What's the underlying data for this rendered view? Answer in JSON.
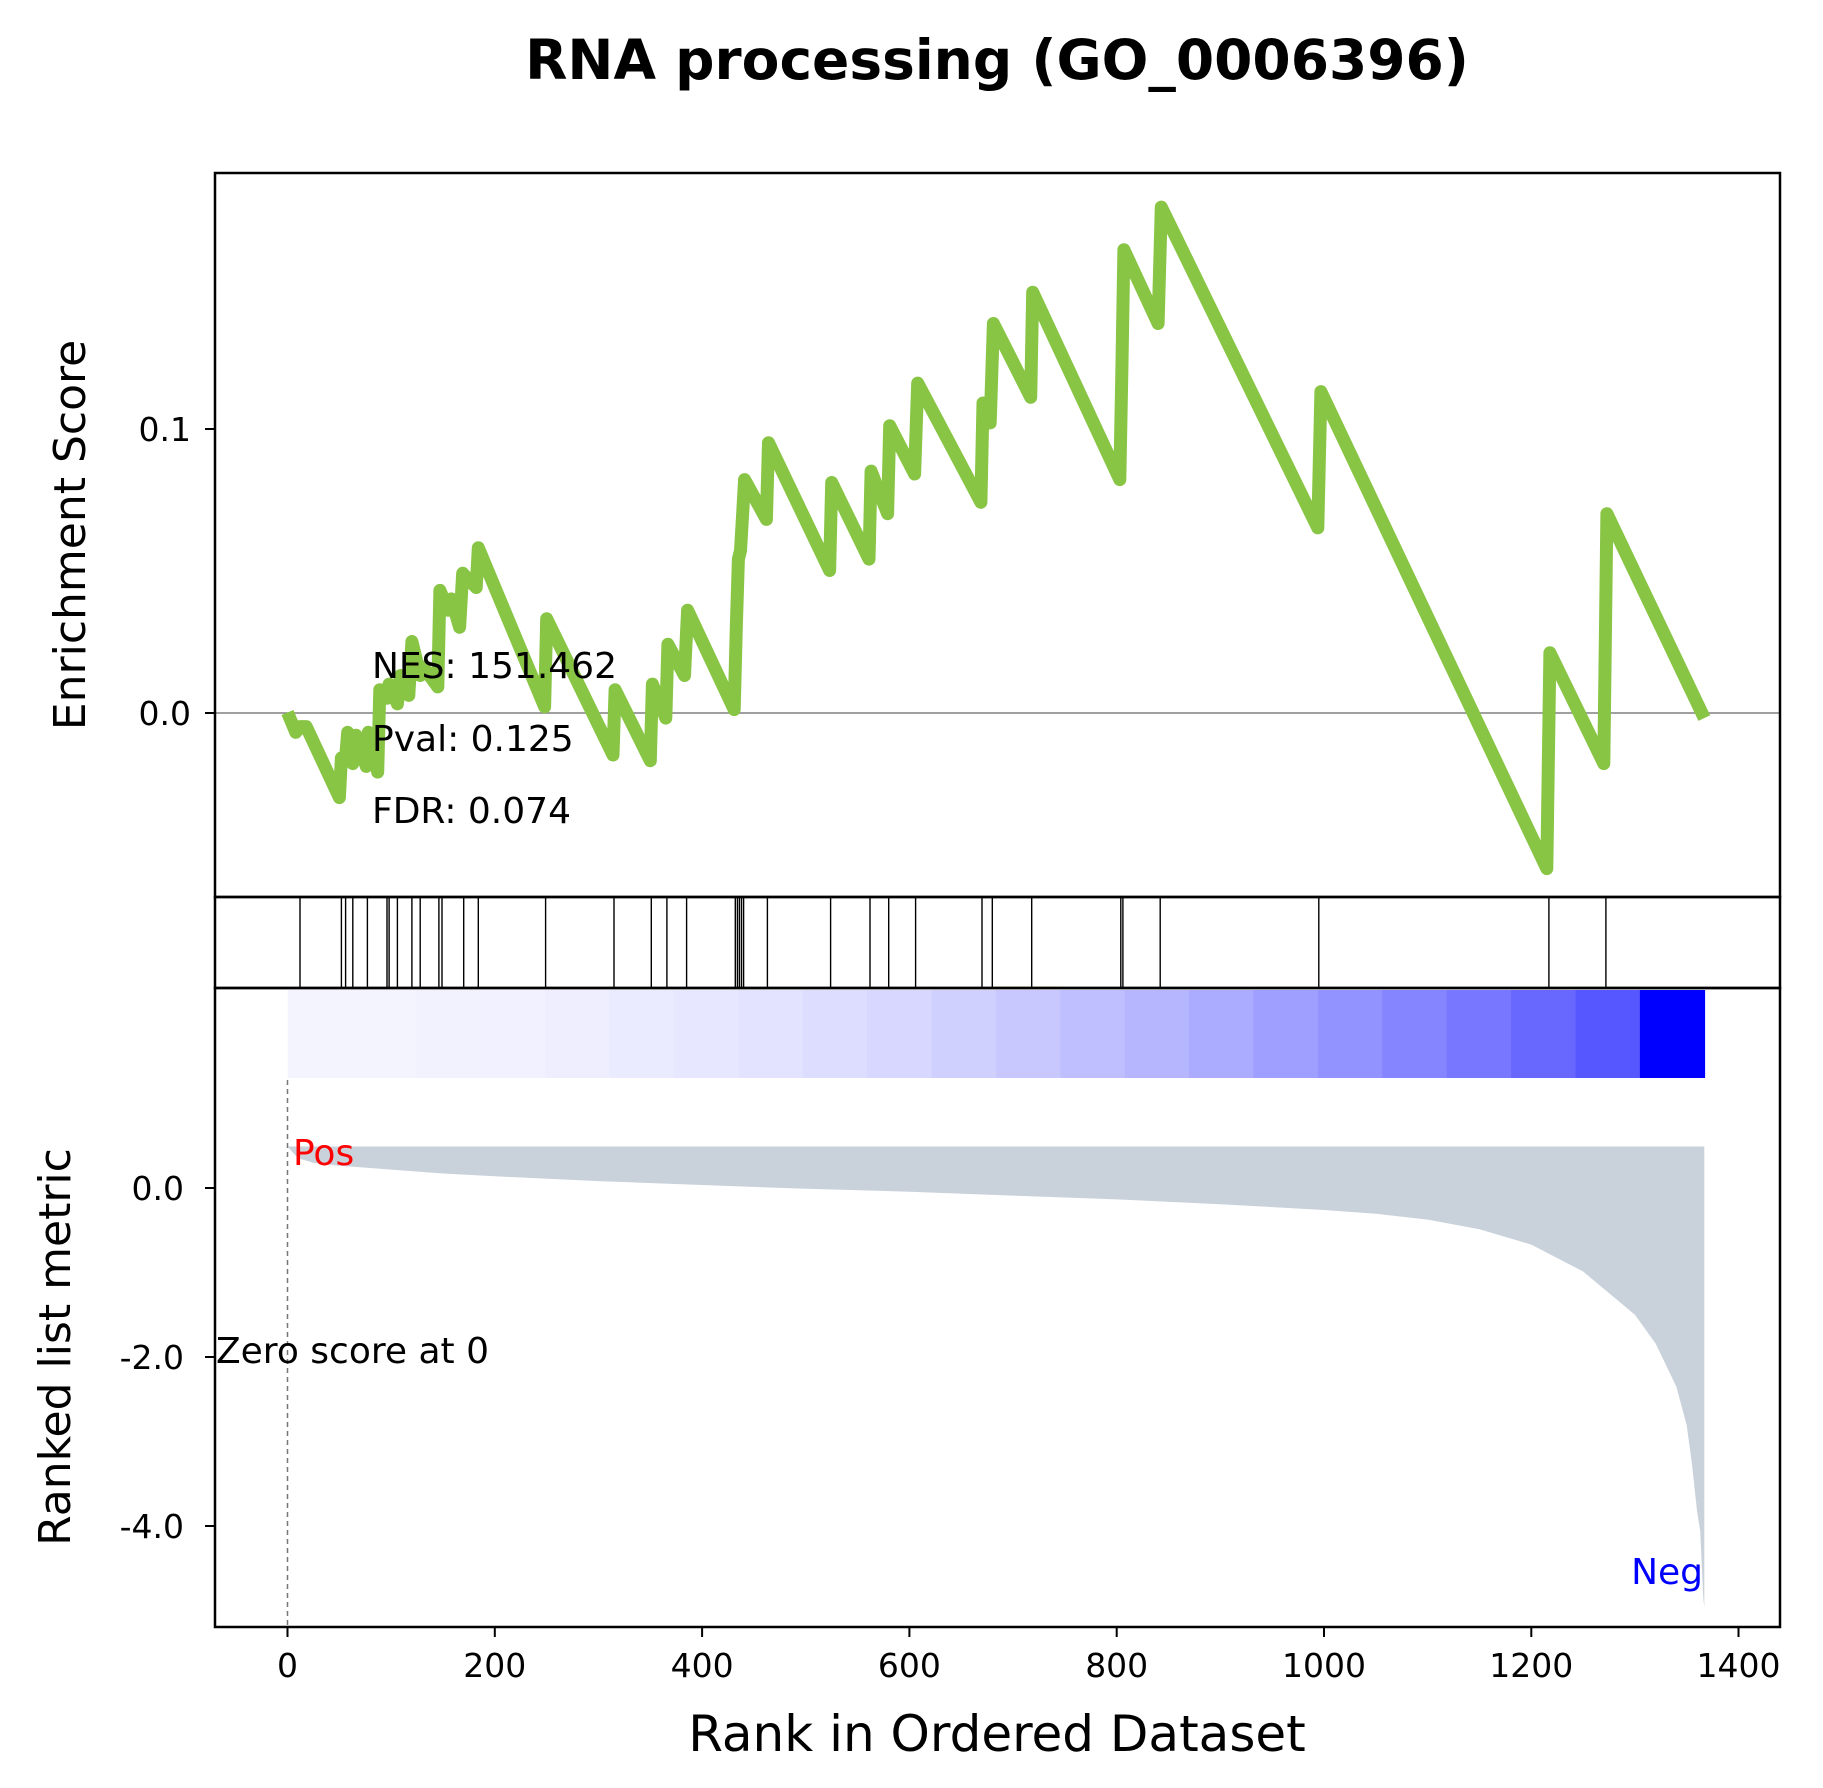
{
  "chart_data": {
    "type": "line",
    "title": "RNA processing (GO_0006396)",
    "xlabel": "Rank in Ordered Dataset",
    "xlim": [
      -70,
      1440
    ],
    "xticks": [
      0,
      200,
      400,
      600,
      800,
      1000,
      1200,
      1400
    ],
    "colors": {
      "es_line": "#88c544",
      "zero_line": "#808080",
      "hit": "#000000",
      "metric_fill": "#c9d2db",
      "pos_label": "#ff0000",
      "neg_label": "#0000ff",
      "heatmap_low": "#f4f4ff",
      "heatmap_high": "#0000ff"
    },
    "es_panel": {
      "ylabel": "Enrichment Score",
      "ylim": [
        -0.065,
        0.19
      ],
      "yticks": [
        0.0,
        0.1
      ],
      "ytick_labels": [
        "0.0",
        "0.1"
      ],
      "stats": [
        "NES: 151.462",
        "Pval: 0.125",
        "FDR: 0.074"
      ],
      "series": [
        {
          "x": [
            0,
            8,
            12,
            18,
            50,
            52,
            56,
            58,
            63,
            66,
            76,
            78,
            87,
            89,
            96,
            98,
            106,
            109,
            117,
            120,
            128,
            131,
            145,
            147,
            155,
            158,
            166,
            169,
            182,
            184,
            248,
            250,
            314,
            316,
            350,
            352,
            365,
            367,
            383,
            386,
            431,
            433,
            435,
            437,
            439,
            441,
            462,
            464,
            523,
            525,
            561,
            563,
            579,
            581,
            605,
            608,
            669,
            671,
            678,
            681,
            717,
            719,
            803,
            805,
            807,
            840,
            843,
            994,
            997,
            1215,
            1218,
            1270,
            1273,
            1367
          ],
          "y": [
            0.0,
            -0.007,
            -0.005,
            -0.005,
            -0.03,
            -0.016,
            -0.016,
            -0.007,
            -0.018,
            -0.008,
            -0.019,
            -0.007,
            -0.021,
            0.008,
            0.005,
            0.01,
            0.003,
            0.013,
            0.006,
            0.025,
            0.013,
            0.016,
            0.009,
            0.043,
            0.036,
            0.04,
            0.03,
            0.049,
            0.044,
            0.058,
            0.002,
            0.033,
            -0.015,
            0.008,
            -0.017,
            0.01,
            -0.002,
            0.024,
            0.013,
            0.036,
            0.001,
            0.03,
            0.054,
            0.057,
            0.069,
            0.082,
            0.068,
            0.095,
            0.05,
            0.081,
            0.054,
            0.085,
            0.07,
            0.101,
            0.084,
            0.116,
            0.074,
            0.109,
            0.102,
            0.137,
            0.111,
            0.148,
            0.082,
            0.121,
            0.163,
            0.137,
            0.178,
            0.065,
            0.113,
            -0.055,
            0.021,
            -0.018,
            0.07,
            -0.002
          ]
        }
      ]
    },
    "hits_panel": {
      "hits": [
        12,
        52,
        56,
        63,
        77,
        96,
        98,
        106,
        120,
        128,
        146,
        149,
        170,
        184,
        249,
        315,
        351,
        366,
        385,
        432,
        434,
        436,
        438,
        440,
        463,
        524,
        562,
        580,
        606,
        670,
        680,
        718,
        804,
        806,
        842,
        995,
        1217,
        1272
      ]
    },
    "metric_panel": {
      "ylabel": "Ranked list metric",
      "ylim": [
        -5.0,
        1.65
      ],
      "yticks": [
        0.0,
        -2.0,
        -4.0
      ],
      "ytick_labels": [
        "0.0",
        "-2.0",
        "-4.0"
      ],
      "pos_label": "Pos",
      "neg_label": "Neg",
      "zero_score_label": "Zero score at 0",
      "zero_score_x": 0,
      "series": [
        {
          "x": [
            0,
            10,
            25,
            50,
            100,
            150,
            200,
            300,
            400,
            500,
            600,
            700,
            800,
            900,
            1000,
            1050,
            1100,
            1150,
            1200,
            1250,
            1300,
            1320,
            1340,
            1350,
            1355,
            1360,
            1363,
            1366,
            1367
          ],
          "y": [
            0,
            -0.12,
            -0.17,
            -0.2,
            -0.24,
            -0.28,
            -0.31,
            -0.36,
            -0.4,
            -0.44,
            -0.47,
            -0.51,
            -0.55,
            -0.6,
            -0.66,
            -0.7,
            -0.76,
            -0.86,
            -1.02,
            -1.3,
            -1.75,
            -2.05,
            -2.5,
            -2.9,
            -3.3,
            -3.8,
            -4.0,
            -4.7,
            -4.8
          ]
        }
      ]
    }
  }
}
